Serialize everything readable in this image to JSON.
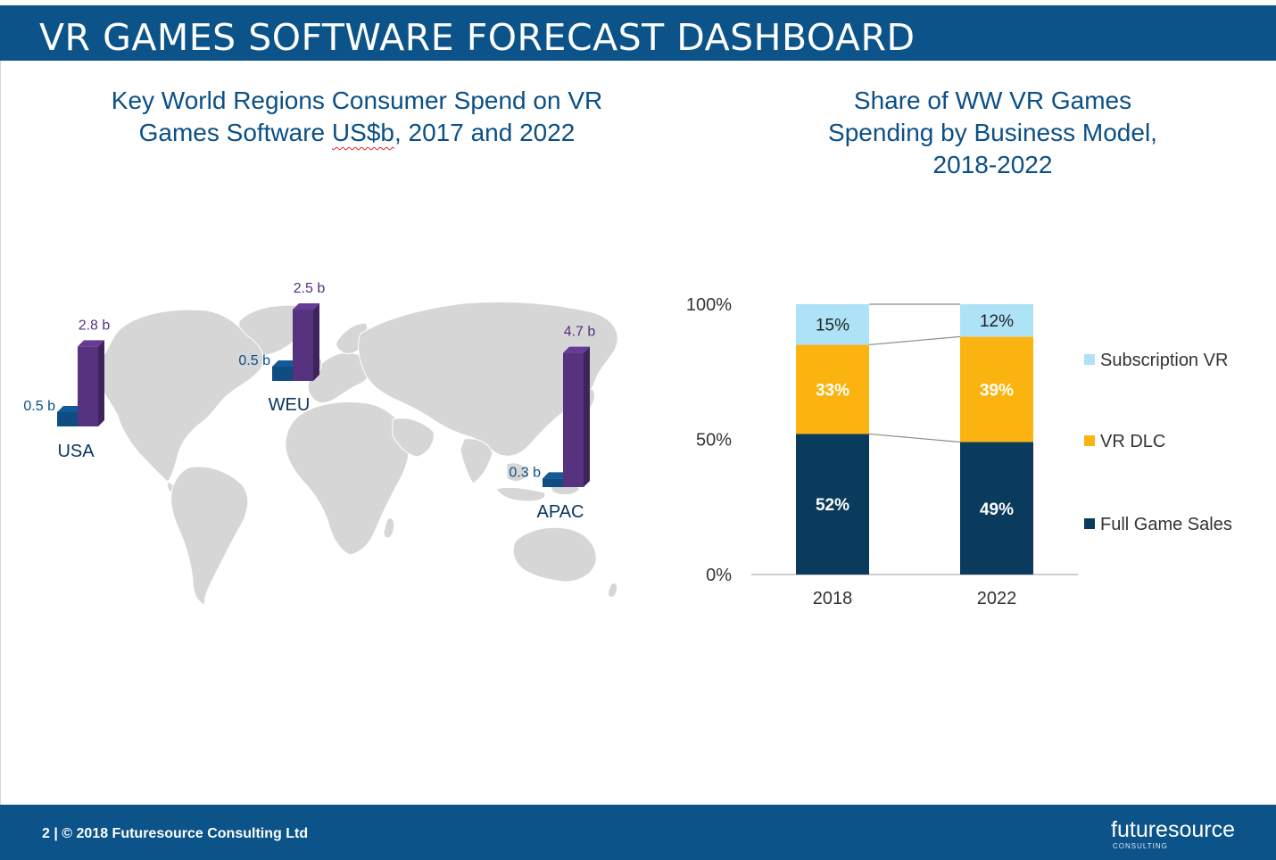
{
  "header": {
    "title": "VR GAMES SOFTWARE FORECAST DASHBOARD"
  },
  "left_chart_title": {
    "line1": "Key World Regions Consumer Spend on VR",
    "line2_pre": "Games Software ",
    "line2_unit": "US$b",
    "line2_post": ", 2017 and 2022"
  },
  "right_chart_title": {
    "line1": "Share of WW VR Games",
    "line2": "Spending by Business Model,",
    "line3": "2018-2022"
  },
  "chart_data": [
    {
      "type": "bar",
      "title": "Key World Regions Consumer Spend on VR Games Software US$b, 2017 and 2022",
      "categories": [
        "USA",
        "WEU",
        "APAC"
      ],
      "series": [
        {
          "name": "2017",
          "color": "#0f4c81",
          "values": [
            0.5,
            0.5,
            0.3
          ],
          "labels": [
            "0.5 b",
            "0.5 b",
            "0.3 b"
          ]
        },
        {
          "name": "2022",
          "color": "#56327f",
          "values": [
            2.8,
            2.5,
            4.7
          ],
          "labels": [
            "2.8 b",
            "2.5 b",
            "4.7 b"
          ]
        }
      ],
      "ylabel": "US$b"
    },
    {
      "type": "bar",
      "stacked": true,
      "title": "Share of WW VR Games Spending by Business Model, 2018-2022",
      "categories": [
        "2018",
        "2022"
      ],
      "series": [
        {
          "name": "Full Game Sales",
          "color": "#0a3a5c",
          "values": [
            52,
            49
          ],
          "labels": [
            "52%",
            "49%"
          ]
        },
        {
          "name": "VR DLC",
          "color": "#fbb40f",
          "values": [
            33,
            39
          ],
          "labels": [
            "33%",
            "39%"
          ]
        },
        {
          "name": "Subscription VR",
          "color": "#aee2f7",
          "values": [
            15,
            12
          ],
          "labels": [
            "15%",
            "12%"
          ]
        }
      ],
      "yticks": [
        "0%",
        "50%",
        "100%"
      ],
      "ylim": [
        0,
        100
      ],
      "legend_position": "right"
    }
  ],
  "footer": {
    "text": "2 | © 2018 Futuresource Consulting Ltd",
    "logo_text": "futuresource",
    "logo_sub": "CONSULTING"
  }
}
